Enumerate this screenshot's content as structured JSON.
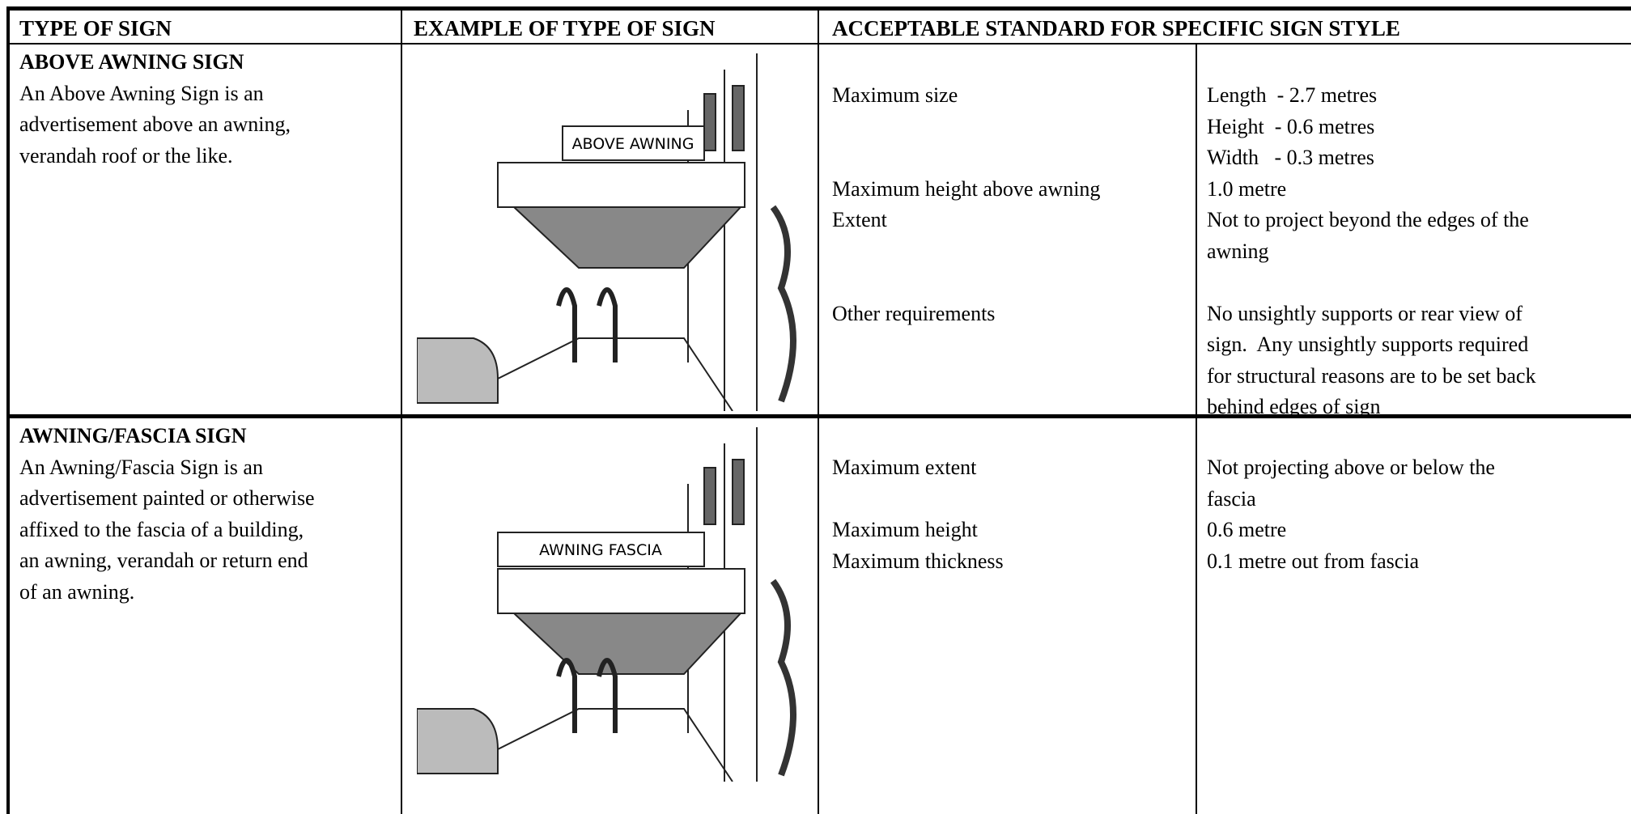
{
  "table": {
    "header": [
      "TYPE OF SIGN",
      "EXAMPLE OF TYPE OF SIGN",
      "ACCEPTABLE STANDARD FOR SPECIFIC SIGN STYLE"
    ],
    "rows": [
      {
        "title": "ABOVE AWNING SIGN",
        "description": [
          "An Above Awning Sign is an",
          "advertisement above an awning,",
          "verandah roof or the like."
        ],
        "sign_text": "ABOVE AWNING",
        "standards": [
          {
            "label": "Maximum size",
            "value": [
              "Length  - 2.7 metres",
              "Height  - 0.6 metres",
              "Width   - 0.3 metres"
            ]
          },
          {
            "label": "Maximum height above awning",
            "value": [
              "1.0 metre"
            ]
          },
          {
            "label": "Extent",
            "value": [
              "Not to project beyond the edges of the",
              "awning"
            ]
          },
          {
            "label": "Other requirements",
            "value": [
              "No unsightly supports or rear view of",
              "sign.  Any unsightly supports required",
              "for structural reasons are to be set back",
              "behind edges of sign"
            ]
          }
        ]
      },
      {
        "title": "AWNING/FASCIA SIGN",
        "description": [
          "An Awning/Fascia Sign is an",
          "advertisement painted or otherwise",
          "affixed to the fascia of a building,",
          "an awning, verandah or return end",
          "of an awning."
        ],
        "sign_text": "AWNING FASCIA",
        "standards": [
          {
            "label": "Maximum extent",
            "value": [
              "Not projecting above or below the",
              "fascia"
            ]
          },
          {
            "label": "Maximum height",
            "value": [
              "0.6 metre"
            ]
          },
          {
            "label": "Maximum thickness",
            "value": [
              "0.1 metre out from fascia"
            ]
          }
        ]
      }
    ]
  }
}
